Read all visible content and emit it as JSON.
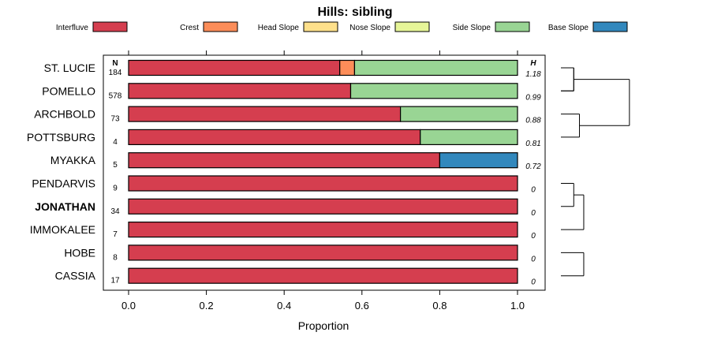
{
  "chart_data": {
    "type": "bar",
    "stacked": true,
    "orientation": "horizontal",
    "title": "Hills: sibling",
    "xlabel": "Proportion",
    "ylabel": "",
    "xlim": [
      0,
      1
    ],
    "x_ticks": [
      "0.0",
      "0.2",
      "0.4",
      "0.6",
      "0.8",
      "1.0"
    ],
    "legend_position": "top",
    "legend": [
      {
        "name": "Interfluve",
        "color": "#d53e4f"
      },
      {
        "name": "Crest",
        "color": "#fc8d59"
      },
      {
        "name": "Head Slope",
        "color": "#fee08b"
      },
      {
        "name": "Nose Slope",
        "color": "#e6f598"
      },
      {
        "name": "Side Slope",
        "color": "#99d594"
      },
      {
        "name": "Base Slope",
        "color": "#3288bd"
      }
    ],
    "n_header": "N",
    "h_header": "H",
    "categories": [
      "ST. LUCIE",
      "POMELLO",
      "ARCHBOLD",
      "POTTSBURG",
      "MYAKKA",
      "PENDARVIS",
      "JONATHAN",
      "IMMOKALEE",
      "HOBE",
      "CASSIA"
    ],
    "highlight": "JONATHAN",
    "n": [
      "184",
      "578",
      "73",
      "4",
      "5",
      "9",
      "34",
      "7",
      "8",
      "17"
    ],
    "h": [
      "1.18",
      "0.99",
      "0.88",
      "0.81",
      "0.72",
      "0",
      "0",
      "0",
      "0",
      "0"
    ],
    "series": [
      {
        "name": "Interfluve",
        "values": [
          0.543,
          0.571,
          0.699,
          0.75,
          0.8,
          1,
          1,
          1,
          1,
          1
        ]
      },
      {
        "name": "Crest",
        "values": [
          0.038,
          0,
          0,
          0,
          0,
          0,
          0,
          0,
          0,
          0
        ]
      },
      {
        "name": "Head Slope",
        "values": [
          0,
          0,
          0,
          0,
          0,
          0,
          0,
          0,
          0,
          0
        ]
      },
      {
        "name": "Nose Slope",
        "values": [
          0,
          0,
          0,
          0,
          0,
          0,
          0,
          0,
          0,
          0
        ]
      },
      {
        "name": "Side Slope",
        "values": [
          0.419,
          0.429,
          0.301,
          0.25,
          0,
          0,
          0,
          0,
          0,
          0
        ]
      },
      {
        "name": "Base Slope",
        "values": [
          0,
          0,
          0,
          0,
          0.2,
          0,
          0,
          0,
          0,
          0
        ]
      }
    ],
    "dendrogram": {
      "type": "dendrogram",
      "leaf_order": [
        "ST. LUCIE",
        "POMELLO",
        "ARCHBOLD",
        "POTTSBURG",
        "MYAKKA",
        "PENDARVIS",
        "JONATHAN",
        "IMMOKALEE",
        "HOBE",
        "CASSIA"
      ],
      "merges": [
        {
          "children": [
            "ST. LUCIE",
            "POMELLO"
          ],
          "height": 0.09
        },
        {
          "children": [
            "ARCHBOLD",
            "POTTSBURG"
          ],
          "height": 0.13
        },
        {
          "children": [
            "HOBE",
            "CASSIA"
          ],
          "height": 0.16
        },
        {
          "children": [
            "PENDARVIS",
            "JONATHAN"
          ],
          "height": 0.09
        },
        {
          "children": [
            "PENDARVIS+JONATHAN",
            "IMMOKALEE"
          ],
          "height": 0.16
        },
        {
          "children": [
            "PENDARVIS+JONATHAN+IMMOKALEE",
            "HOBE+CASSIA"
          ],
          "height": 0.24
        },
        {
          "children": [
            "ST. LUCIE+POMELLO",
            "ARCHBOLD+POTTSBURG"
          ],
          "height": 0.48
        },
        {
          "children": [
            "MYAKKA",
            "PENDARVIS..CASSIA"
          ],
          "height": 0.54
        },
        {
          "children": [
            "ST. LUCIE..POTTSBURG",
            "MYAKKA..CASSIA"
          ],
          "height": 1.0
        }
      ]
    }
  }
}
